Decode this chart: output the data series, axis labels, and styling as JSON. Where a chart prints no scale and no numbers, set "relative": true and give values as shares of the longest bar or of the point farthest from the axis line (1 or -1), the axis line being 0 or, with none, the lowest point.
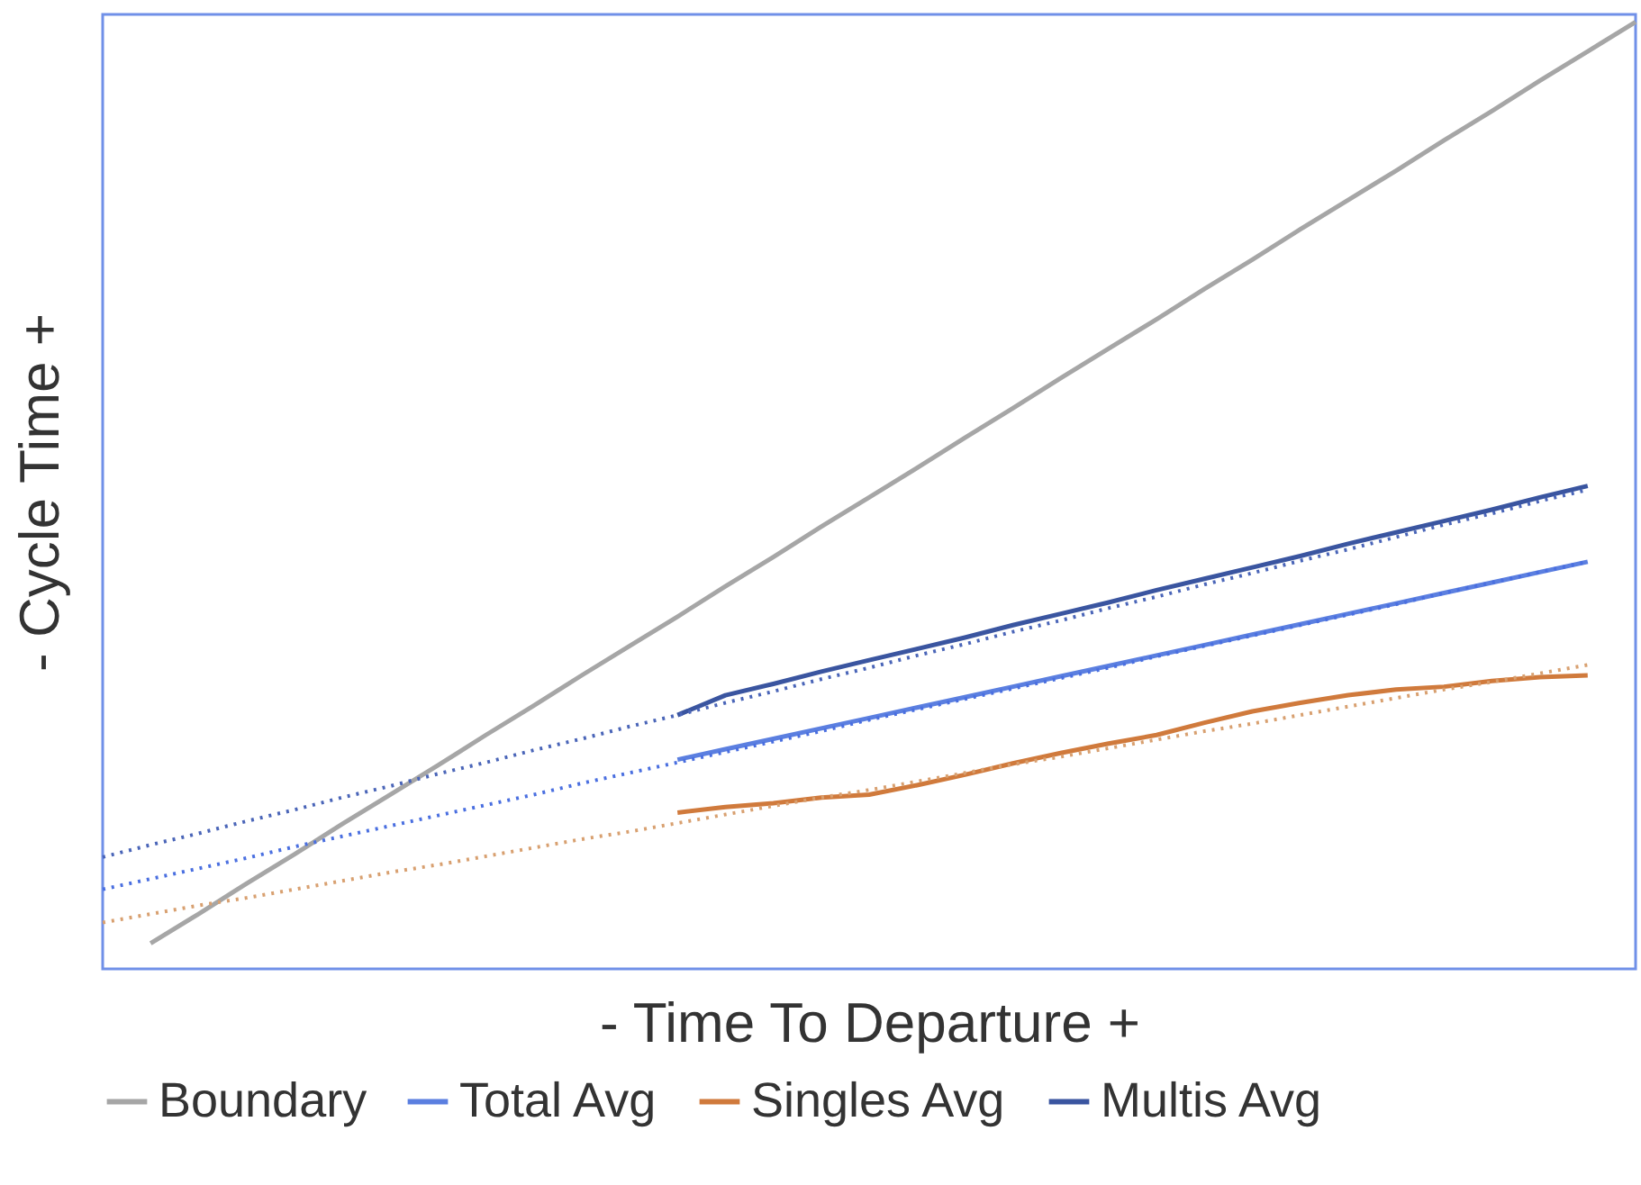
{
  "chart_data": {
    "type": "line",
    "relative": true,
    "xlabel": "- Time To Departure +",
    "ylabel": "- Cycle Time +",
    "legend": "bottom",
    "grid": false,
    "categories": [
      null,
      null,
      null,
      null,
      null,
      null,
      null,
      null,
      null,
      null,
      null,
      null,
      null,
      null,
      null,
      null,
      null,
      null,
      null,
      null,
      null,
      null,
      null,
      null,
      null,
      null,
      null,
      null,
      null,
      null,
      null,
      null,
      null
    ],
    "series": [
      {
        "name": "Boundary",
        "color": "#a6a6a6",
        "line_style": "solid",
        "values": [
          null,
          0.027,
          0.058,
          0.09,
          0.121,
          0.153,
          0.184,
          0.215,
          0.247,
          0.278,
          0.31,
          0.341,
          0.372,
          0.404,
          0.435,
          0.467,
          0.498,
          0.529,
          0.561,
          0.592,
          0.624,
          0.655,
          0.686,
          0.718,
          0.749,
          0.781,
          0.812,
          0.843,
          0.875,
          0.906,
          0.938,
          0.969,
          1.0
        ]
      },
      {
        "name": "Total Avg",
        "color": "#5b7fe0",
        "line_style": "solid",
        "values": [
          null,
          null,
          null,
          null,
          null,
          null,
          null,
          null,
          null,
          null,
          null,
          null,
          0.221,
          0.232,
          0.243,
          0.254,
          0.265,
          0.276,
          0.287,
          0.298,
          0.309,
          0.32,
          0.331,
          0.342,
          0.353,
          0.364,
          0.375,
          0.386,
          0.397,
          0.408,
          0.419,
          0.43,
          null
        ]
      },
      {
        "name": "Singles Avg",
        "color": "#d07a3c",
        "line_style": "solid",
        "values": [
          null,
          null,
          null,
          null,
          null,
          null,
          null,
          null,
          null,
          null,
          null,
          null,
          0.165,
          0.171,
          0.175,
          0.181,
          0.184,
          0.194,
          0.205,
          0.217,
          0.228,
          0.238,
          0.247,
          0.26,
          0.272,
          0.281,
          0.289,
          0.295,
          0.298,
          0.304,
          0.308,
          0.31,
          null
        ]
      },
      {
        "name": "Multis Avg",
        "color": "#3a55a0",
        "line_style": "solid",
        "values": [
          null,
          null,
          null,
          null,
          null,
          null,
          null,
          null,
          null,
          null,
          null,
          null,
          0.268,
          0.289,
          0.301,
          0.314,
          0.326,
          0.338,
          0.35,
          0.363,
          0.375,
          0.387,
          0.4,
          0.412,
          0.424,
          0.436,
          0.449,
          0.461,
          0.473,
          0.485,
          0.498,
          0.51,
          null
        ]
      },
      {
        "color": "#4a6fe0",
        "line_style": "dotted",
        "values": [
          0.084,
          0.095,
          0.106,
          0.117,
          0.129,
          0.14,
          0.151,
          0.162,
          0.173,
          0.184,
          0.196,
          0.207,
          0.218,
          0.229,
          0.24,
          0.251,
          0.263,
          0.274,
          0.285,
          0.296,
          0.307,
          0.318,
          0.33,
          0.341,
          0.352,
          0.363,
          0.374,
          0.385,
          0.397,
          0.408,
          0.419,
          0.43,
          null
        ]
      },
      {
        "color": "#d8a070",
        "line_style": "dotted",
        "values": [
          0.049,
          0.058,
          0.067,
          0.075,
          0.084,
          0.093,
          0.102,
          0.11,
          0.119,
          0.128,
          0.137,
          0.145,
          0.154,
          0.163,
          0.172,
          0.181,
          0.189,
          0.198,
          0.207,
          0.216,
          0.224,
          0.233,
          0.242,
          0.251,
          0.259,
          0.268,
          0.277,
          0.286,
          0.295,
          0.303,
          0.312,
          0.321,
          null
        ]
      },
      {
        "color": "#4a65b8",
        "line_style": "dotted",
        "values": [
          0.118,
          0.131,
          0.143,
          0.156,
          0.168,
          0.181,
          0.193,
          0.206,
          0.218,
          0.231,
          0.243,
          0.256,
          0.268,
          0.281,
          0.293,
          0.306,
          0.318,
          0.331,
          0.343,
          0.356,
          0.368,
          0.381,
          0.393,
          0.406,
          0.418,
          0.431,
          0.443,
          0.456,
          0.469,
          0.481,
          0.494,
          0.506,
          null
        ]
      }
    ]
  }
}
